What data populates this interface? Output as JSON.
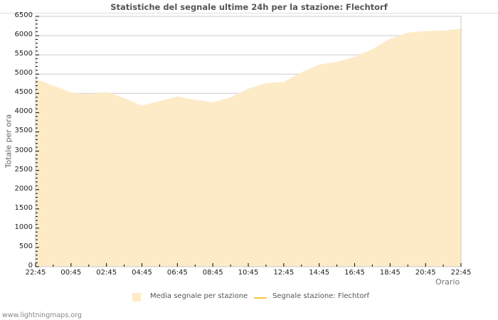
{
  "chart_data": {
    "type": "area",
    "title": "Statistiche del segnale ultime 24h per la stazione: Flechtorf",
    "xlabel": "Orario",
    "ylabel": "Totale per ora",
    "ylim": [
      0,
      6500
    ],
    "y_ticks": [
      0,
      500,
      1000,
      1500,
      2000,
      2500,
      3000,
      3500,
      4000,
      4500,
      5000,
      5500,
      6000,
      6500
    ],
    "x_ticks": [
      "22:45",
      "00:45",
      "02:45",
      "04:45",
      "06:45",
      "08:45",
      "10:45",
      "12:45",
      "14:45",
      "16:45",
      "18:45",
      "20:45",
      "22:45"
    ],
    "grid": true,
    "legend_position": "bottom",
    "x": [
      "22:45",
      "23:45",
      "00:45",
      "01:45",
      "02:45",
      "03:45",
      "04:45",
      "05:45",
      "06:45",
      "07:45",
      "08:45",
      "09:45",
      "10:45",
      "11:45",
      "12:45",
      "13:45",
      "14:45",
      "15:45",
      "16:45",
      "17:45",
      "18:45",
      "19:45",
      "20:45",
      "21:45",
      "22:45"
    ],
    "series": [
      {
        "name": "Media segnale per stazione",
        "type": "area",
        "color": "#fdebc8",
        "values": [
          4870,
          4700,
          4520,
          4480,
          4540,
          4380,
          4180,
          4300,
          4420,
          4330,
          4270,
          4400,
          4620,
          4770,
          4800,
          5050,
          5250,
          5320,
          5450,
          5650,
          5920,
          6080,
          6120,
          6130,
          6180
        ]
      },
      {
        "name": "Segnale stazione: Flechtorf",
        "type": "line",
        "color": "#f5c842",
        "values": []
      }
    ]
  },
  "legend": {
    "item1": "Media segnale per stazione",
    "item2": "Segnale stazione: Flechtorf"
  },
  "footer": "www.lightningmaps.org"
}
